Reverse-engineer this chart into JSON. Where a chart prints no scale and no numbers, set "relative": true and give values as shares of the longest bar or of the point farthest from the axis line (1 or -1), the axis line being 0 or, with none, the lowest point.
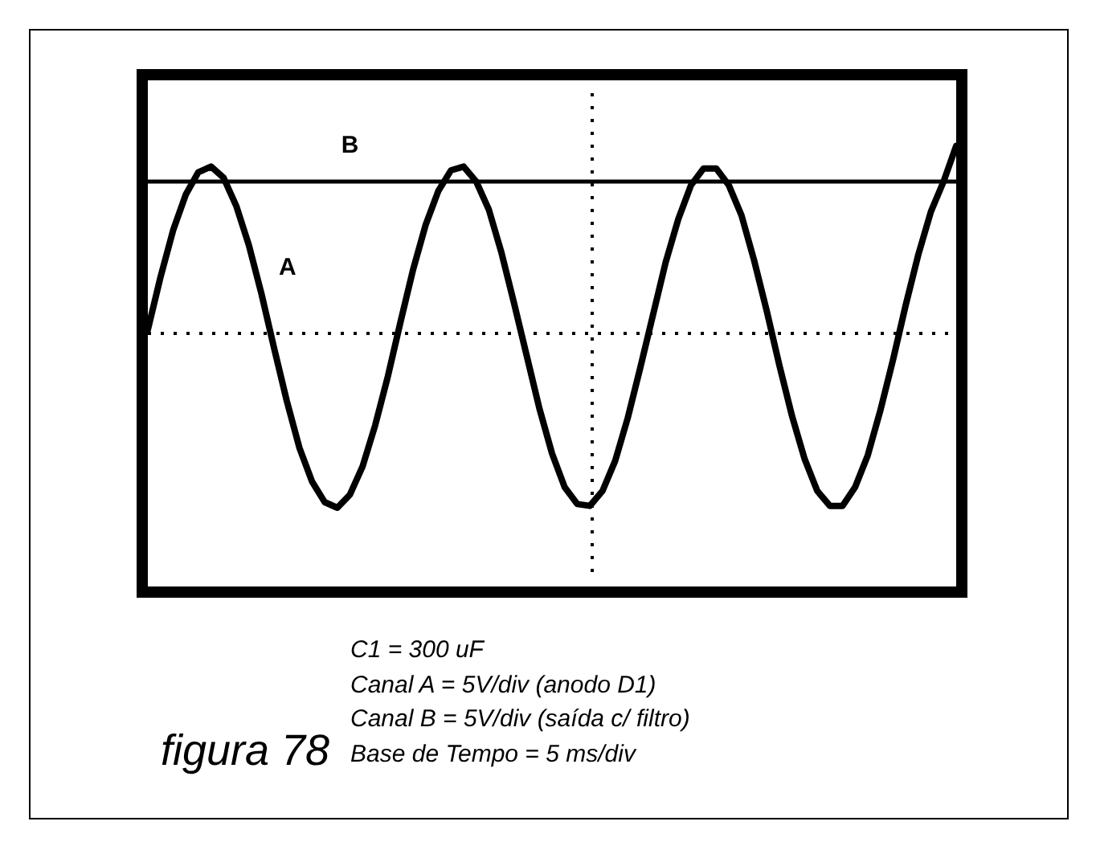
{
  "chart_data": {
    "type": "line",
    "title": "figura 78",
    "annotations": [
      "C1 = 300 uF",
      "Canal A = 5V/div (anodo D1)",
      "Canal B = 5V/div (saída c/ filtro)",
      "Base de Tempo = 5 ms/div"
    ],
    "categories": [
      null,
      null,
      null,
      null,
      null,
      null,
      null,
      null,
      null,
      null,
      null,
      null,
      null,
      null,
      null,
      null,
      null,
      null,
      null,
      null,
      null,
      null,
      null,
      null,
      null,
      null,
      null,
      null,
      null,
      null,
      null,
      null,
      null,
      null,
      null,
      null,
      null,
      null,
      null,
      null,
      null,
      null,
      null,
      null,
      null,
      null,
      null,
      null,
      null,
      null,
      null,
      null,
      null,
      null,
      null,
      null,
      null,
      null,
      null,
      null,
      null,
      null,
      null,
      null,
      null
    ],
    "series": [
      {
        "name": "A",
        "color": "#000000",
        "values": [
          0.02,
          0.3,
          0.55,
          0.74,
          0.86,
          0.89,
          0.83,
          0.68,
          0.47,
          0.21,
          -0.08,
          -0.36,
          -0.61,
          -0.79,
          -0.9,
          -0.93,
          -0.86,
          -0.71,
          -0.49,
          -0.23,
          0.06,
          0.34,
          0.58,
          0.76,
          0.87,
          0.89,
          0.81,
          0.66,
          0.43,
          0.16,
          -0.12,
          -0.4,
          -0.64,
          -0.82,
          -0.91,
          -0.92,
          -0.84,
          -0.68,
          -0.45,
          -0.18,
          0.1,
          0.38,
          0.61,
          0.79,
          0.88,
          0.88,
          0.79,
          0.63,
          0.39,
          0.12,
          -0.17,
          -0.44,
          -0.67,
          -0.84,
          -0.92,
          -0.92,
          -0.82,
          -0.65,
          -0.41,
          -0.14,
          0.15,
          0.42,
          0.65,
          0.81,
          1.0
        ]
      },
      {
        "name": "B",
        "color": "#000000",
        "values": [
          0.81,
          0.81,
          0.81,
          0.81,
          0.81,
          0.81,
          0.81,
          0.81,
          0.81,
          0.81,
          0.81,
          0.81,
          0.81,
          0.81,
          0.81,
          0.81,
          0.81,
          0.81,
          0.81,
          0.81,
          0.81,
          0.81,
          0.81,
          0.81,
          0.81,
          0.81,
          0.81,
          0.81,
          0.81,
          0.81,
          0.81,
          0.81,
          0.81,
          0.81,
          0.81,
          0.81,
          0.81,
          0.81,
          0.81,
          0.81,
          0.81,
          0.81,
          0.81,
          0.81,
          0.81,
          0.81,
          0.81,
          0.81,
          0.81,
          0.81,
          0.81,
          0.81,
          0.81,
          0.81,
          0.81,
          0.81,
          0.81,
          0.81,
          0.81,
          0.81,
          0.81,
          0.81,
          0.81,
          0.81,
          0.81
        ]
      }
    ],
    "ref_lines": [
      {
        "axis": "y",
        "value": 0,
        "line_style": "dotted",
        "color": "#000000"
      }
    ],
    "relative": true,
    "tick_labels": false,
    "legend": false,
    "marker": "none",
    "line_style": "solid"
  }
}
